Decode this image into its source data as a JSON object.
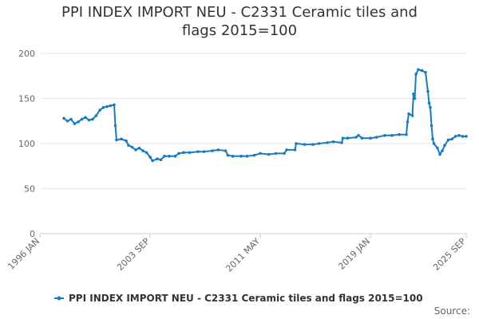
{
  "chart_data": {
    "type": "line",
    "title": "PPI INDEX IMPORT NEU - C2331 Ceramic tiles and flags 2015=100",
    "source": "Source:",
    "x": [
      "1997 SEP",
      "1997 DEC",
      "1998 MAR",
      "1998 JUN",
      "1998 SEP",
      "1998 DEC",
      "1999 MAR",
      "1999 JUN",
      "1999 SEP",
      "1999 DEC",
      "2000 MAR",
      "2000 JUN",
      "2000 SEP",
      "2000 DEC",
      "2001 MAR",
      "2001 APR",
      "2001 MAY",
      "2001 SEP",
      "2002 JAN",
      "2002 MAR",
      "2002 JUN",
      "2002 SEP",
      "2002 DEC",
      "2003 MAR",
      "2003 JUN",
      "2003 SEP",
      "2003 NOV",
      "2004 MAR",
      "2004 JUN",
      "2004 SEP",
      "2005 JAN",
      "2005 JUN",
      "2005 SEP",
      "2006 JAN",
      "2006 JUN",
      "2007 JAN",
      "2007 JUN",
      "2008 JAN",
      "2008 JUN",
      "2008 DEC",
      "2009 FEB",
      "2009 JUN",
      "2010 JAN",
      "2010 JUN",
      "2010 DEC",
      "2011 MAY",
      "2011 DEC",
      "2012 JUN",
      "2013 JAN",
      "2013 MAR",
      "2013 OCT",
      "2013 NOV",
      "2014 JUN",
      "2015 JAN",
      "2015 JUN",
      "2016 JAN",
      "2016 JUN",
      "2017 JAN",
      "2017 FEB",
      "2017 JUN",
      "2018 JAN",
      "2018 MAR",
      "2018 JUN",
      "2019 JAN",
      "2019 JUN",
      "2020 JAN",
      "2020 JUL",
      "2021 JAN",
      "2021 JUL",
      "2021 AUG",
      "2021 SEP",
      "2021 DEC",
      "2022 JAN",
      "2022 FEB",
      "2022 MAR",
      "2022 MAY",
      "2022 AUG",
      "2022 NOV",
      "2023 JAN",
      "2023 FEB",
      "2023 MAR",
      "2023 APR",
      "2023 MAY",
      "2023 JUN",
      "2023 SEP",
      "2023 NOV",
      "2024 JAN",
      "2024 MAR",
      "2024 JUN",
      "2024 SEP",
      "2024 DEC",
      "2025 MAR",
      "2025 JUN",
      "2025 SEP"
    ],
    "series": [
      {
        "name": "PPI INDEX IMPORT NEU - C2331 Ceramic tiles and flags 2015=100",
        "color": "#1a7bbd",
        "values": [
          128,
          125,
          127,
          122,
          124,
          127,
          129,
          126,
          127,
          131,
          137,
          140,
          141,
          142,
          143,
          120,
          104,
          105,
          103,
          98,
          96,
          93,
          95,
          92,
          90,
          85,
          81,
          83,
          82,
          86,
          86,
          86,
          89,
          90,
          90,
          91,
          91,
          92,
          93,
          92,
          87,
          86,
          86,
          86,
          87,
          89,
          88,
          89,
          89,
          93,
          93,
          100,
          99,
          99,
          100,
          101,
          102,
          101,
          106,
          106,
          107,
          109,
          106,
          106,
          107,
          109,
          109,
          110,
          110,
          124,
          133,
          131,
          155,
          150,
          177,
          182,
          181,
          179,
          158,
          145,
          140,
          120,
          105,
          100,
          95,
          88,
          92,
          98,
          104,
          105,
          108,
          109,
          108,
          108
        ]
      }
    ],
    "xlim": [
      "1996 JAN",
      "2025 SEP"
    ],
    "xticks": [
      "1996 JAN",
      "2003 SEP",
      "2011 MAY",
      "2019 JAN",
      "2025 SEP"
    ],
    "ylim": [
      0,
      200
    ],
    "yticks": [
      0,
      50,
      100,
      150,
      200
    ],
    "grid": true
  }
}
